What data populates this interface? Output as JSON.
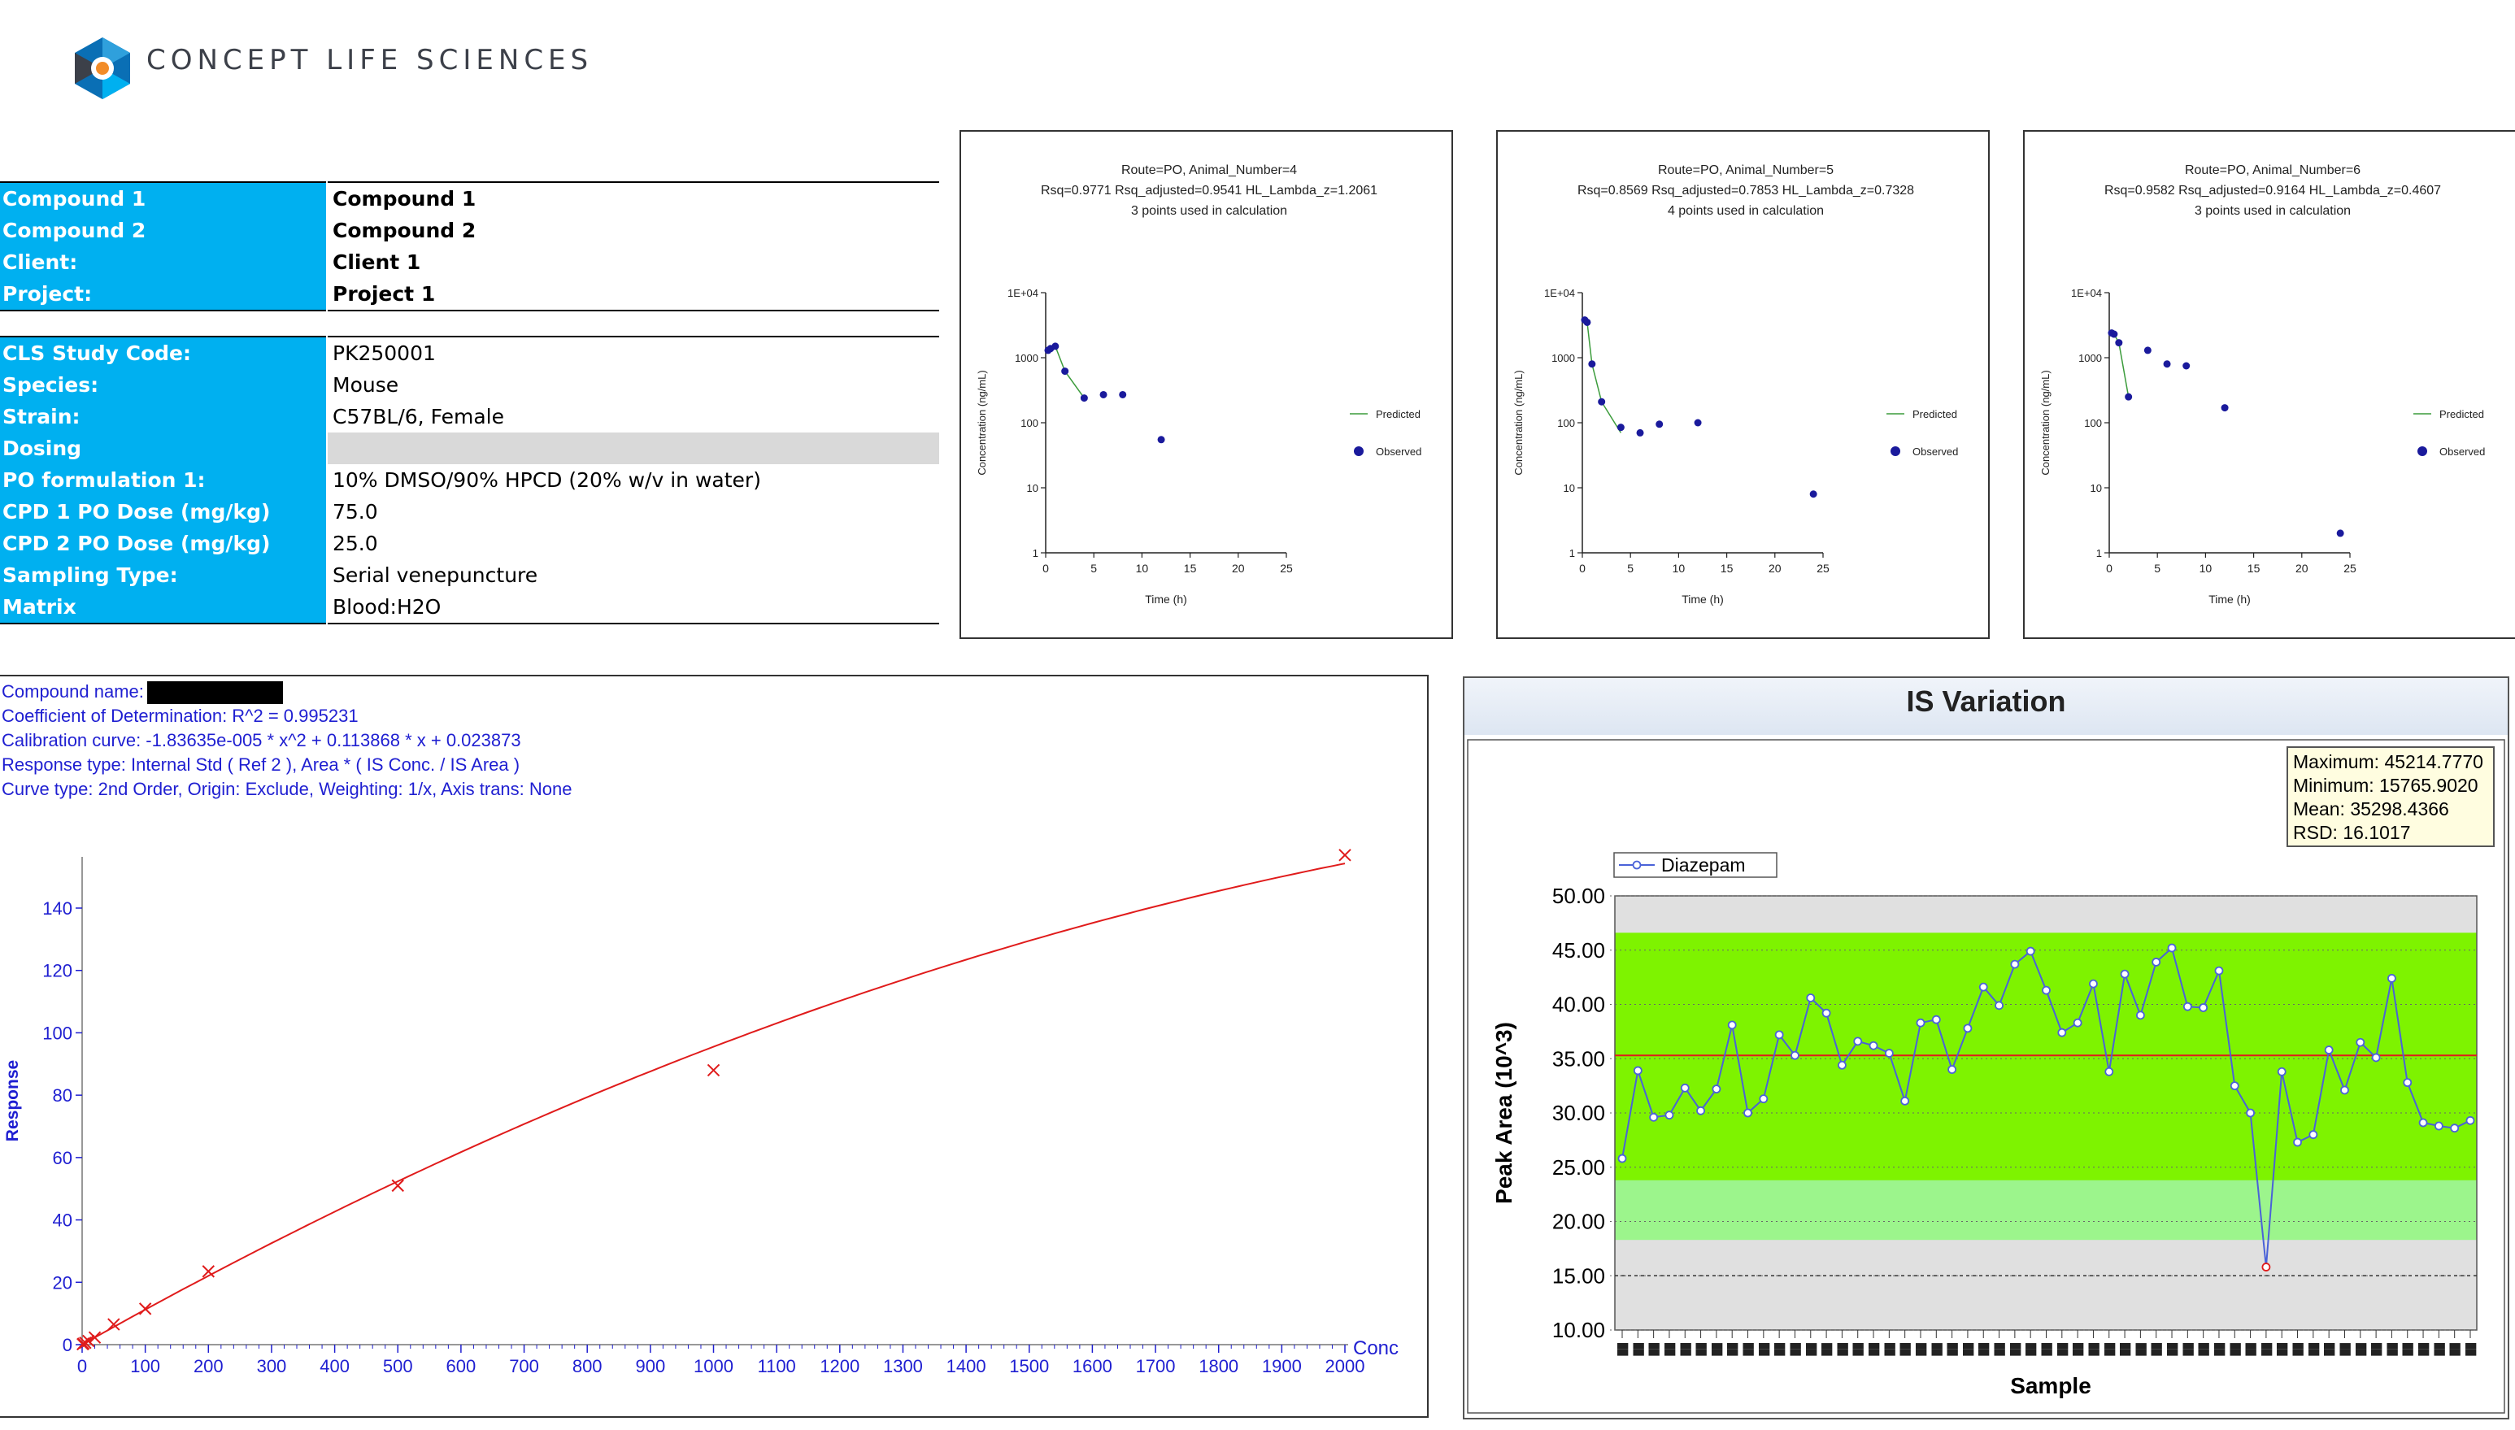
{
  "brand": {
    "name": "CONCEPT LIFE SCIENCES",
    "colors": {
      "cyan": "#00b0f0",
      "dark": "#3c4049",
      "accent": "#0a6fb5"
    }
  },
  "compound_table": [
    {
      "label": "Compound 1",
      "value": "Compound 1"
    },
    {
      "label": "Compound 2",
      "value": "Compound 2"
    },
    {
      "label": "Client:",
      "value": "Client 1"
    },
    {
      "label": "Project:",
      "value": "Project 1"
    }
  ],
  "study_table": [
    {
      "label": "CLS Study Code:",
      "value": "PK250001"
    },
    {
      "label": "Species:",
      "value": "Mouse"
    },
    {
      "label": "Strain:",
      "value": "C57BL/6, Female"
    },
    {
      "label": "Dosing",
      "value": ""
    },
    {
      "label": "PO formulation 1:",
      "value": "10% DMSO/90% HPCD (20% w/v in water)"
    },
    {
      "label": "CPD 1 PO Dose (mg/kg)",
      "value": "75.0"
    },
    {
      "label": "CPD 2 PO Dose (mg/kg)",
      "value": "25.0"
    },
    {
      "label": "Sampling Type:",
      "value": "Serial venepuncture"
    },
    {
      "label": "Matrix",
      "value": "Blood:H2O"
    }
  ],
  "calibration": {
    "lines": [
      "Compound name:",
      "Coefficient of Determination: R^2 = 0.995231",
      "Calibration curve: -1.83635e-005 * x^2 + 0.113868 * x + 0.023873",
      "Response type: Internal Std ( Ref 2 ), Area * ( IS Conc. / IS Area )",
      "Curve type: 2nd Order, Origin: Exclude, Weighting: 1/x, Axis trans: None"
    ]
  },
  "is_variation": {
    "title": "IS Variation",
    "stats": [
      "Maximum: 45214.7770",
      "Minimum: 15765.9020",
      "Mean: 35298.4366",
      "RSD: 16.1017"
    ]
  },
  "chart_data": [
    {
      "type": "scatter",
      "title_lines": [
        "Route=PO, Animal_Number=4",
        "Rsq=0.9771  Rsq_adjusted=0.9541  HL_Lambda_z=1.2061",
        "3 points used in calculation"
      ],
      "xlabel": "Time (h)",
      "ylabel": "Concentration (ng/mL)",
      "yscale": "log",
      "xlim": [
        0,
        25
      ],
      "ylim": [
        1,
        10000
      ],
      "xticks": [
        "0",
        "5",
        "10",
        "15",
        "20",
        "25"
      ],
      "yticks": [
        "1",
        "10",
        "100",
        "1000",
        "1E+04"
      ],
      "legend": [
        "Predicted",
        "Observed"
      ],
      "observed": {
        "x": [
          0.25,
          0.5,
          1,
          2,
          4,
          6,
          8,
          12
        ],
        "y": [
          1300,
          1380,
          1500,
          620,
          240,
          270,
          270,
          55
        ]
      },
      "predicted": {
        "x": [
          1,
          2,
          4
        ],
        "y": [
          1500,
          620,
          240
        ]
      }
    },
    {
      "type": "scatter",
      "title_lines": [
        "Route=PO, Animal_Number=5",
        "Rsq=0.8569  Rsq_adjusted=0.7853  HL_Lambda_z=0.7328",
        "4 points used in calculation"
      ],
      "xlabel": "Time (h)",
      "ylabel": "Concentration (ng/mL)",
      "yscale": "log",
      "xlim": [
        0,
        25
      ],
      "ylim": [
        1,
        10000
      ],
      "xticks": [
        "0",
        "5",
        "10",
        "15",
        "20",
        "25"
      ],
      "yticks": [
        "1",
        "10",
        "100",
        "1000",
        "1E+04"
      ],
      "legend": [
        "Predicted",
        "Observed"
      ],
      "observed": {
        "x": [
          0.25,
          0.5,
          1,
          2,
          4,
          6,
          8,
          12,
          24
        ],
        "y": [
          3800,
          3500,
          800,
          210,
          85,
          70,
          95,
          100,
          8
        ]
      },
      "predicted": {
        "x": [
          0.5,
          1,
          2,
          4
        ],
        "y": [
          3500,
          800,
          210,
          70
        ]
      }
    },
    {
      "type": "scatter",
      "title_lines": [
        "Route=PO, Animal_Number=6",
        "Rsq=0.9582  Rsq_adjusted=0.9164  HL_Lambda_z=0.4607",
        "3 points used in calculation"
      ],
      "xlabel": "Time (h)",
      "ylabel": "Concentration (ng/mL)",
      "yscale": "log",
      "xlim": [
        0,
        25
      ],
      "ylim": [
        1,
        10000
      ],
      "xticks": [
        "0",
        "5",
        "10",
        "15",
        "20",
        "25"
      ],
      "yticks": [
        "1",
        "10",
        "100",
        "1000",
        "1E+04"
      ],
      "legend": [
        "Predicted",
        "Observed"
      ],
      "observed": {
        "x": [
          0.25,
          0.5,
          1,
          2,
          4,
          6,
          8,
          12,
          24
        ],
        "y": [
          2400,
          2300,
          1700,
          250,
          1300,
          800,
          750,
          170,
          2
        ]
      },
      "predicted": {
        "x": [
          0.5,
          1,
          2
        ],
        "y": [
          2300,
          1700,
          250
        ]
      }
    },
    {
      "type": "scatter",
      "title_lines": [],
      "xlabel": "Conc",
      "ylabel": "Response",
      "xlim": [
        0,
        2000
      ],
      "ylim": [
        0,
        150
      ],
      "xticks": [
        "0",
        "100",
        "200",
        "300",
        "400",
        "500",
        "600",
        "700",
        "800",
        "900",
        "1000",
        "1100",
        "1200",
        "1300",
        "1400",
        "1500",
        "1600",
        "1700",
        "1800",
        "1900",
        "2000"
      ],
      "yticks": [
        "0",
        "20",
        "40",
        "60",
        "80",
        "100",
        "120",
        "140"
      ],
      "points": {
        "x": [
          1,
          2,
          5,
          10,
          20,
          50,
          100,
          200,
          500,
          1000,
          2000
        ],
        "y": [
          0.15,
          0.3,
          0.6,
          1.2,
          2.3,
          6.5,
          11.5,
          23.5,
          51,
          88,
          157
        ]
      },
      "curve": {
        "a": -1.83635e-05,
        "b": 0.113868,
        "c": 0.023873,
        "x_range": [
          0,
          2000
        ]
      }
    },
    {
      "type": "line",
      "title": "IS Variation",
      "xlabel": "Sample",
      "ylabel": "Peak Area (10^3)",
      "ylim": [
        10,
        50
      ],
      "yticks": [
        "10.00",
        "15.00",
        "20.00",
        "25.00",
        "30.00",
        "35.00",
        "40.00",
        "45.00",
        "50.00"
      ],
      "series": [
        {
          "name": "Diazepam",
          "values": [
            25.8,
            33.9,
            29.6,
            29.8,
            32.3,
            30.2,
            32.2,
            38.1,
            30.0,
            31.3,
            37.2,
            35.3,
            40.6,
            39.2,
            34.4,
            36.6,
            36.2,
            35.5,
            31.1,
            38.3,
            38.6,
            34.0,
            37.8,
            41.6,
            39.9,
            43.7,
            44.9,
            41.3,
            37.4,
            38.3,
            41.9,
            33.8,
            42.8,
            39.0,
            43.9,
            45.2,
            39.8,
            39.7,
            43.1,
            32.5,
            30.0,
            15.8,
            33.8,
            27.3,
            28.0,
            35.8,
            32.1,
            36.5,
            35.1,
            42.4,
            32.8,
            29.1,
            28.8,
            28.6,
            29.3
          ]
        }
      ],
      "mean": 35.3,
      "bands": {
        "outer": [
          18.3,
          46.6
        ],
        "inner": [
          23.8,
          46.6
        ]
      },
      "lower_limit": 15.0
    }
  ]
}
